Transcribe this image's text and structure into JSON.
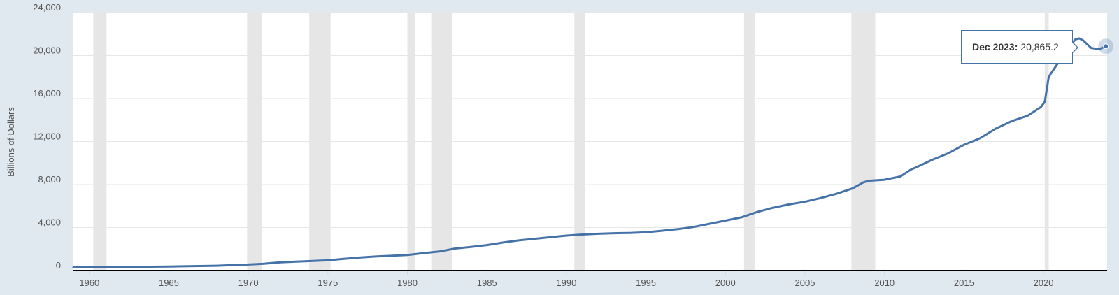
{
  "chart_data": {
    "type": "line",
    "title": "",
    "xlabel": "",
    "ylabel": "Billions of Dollars",
    "xlim": [
      1959.0,
      2024.0
    ],
    "ylim": [
      0,
      24000
    ],
    "y_ticks": [
      0,
      4000,
      8000,
      12000,
      16000,
      20000,
      24000
    ],
    "y_tick_labels": [
      "0",
      "4,000",
      "8,000",
      "12,000",
      "16,000",
      "20,000",
      "24,000"
    ],
    "x_ticks": [
      1960,
      1965,
      1970,
      1975,
      1980,
      1985,
      1990,
      1995,
      2000,
      2005,
      2010,
      2015,
      2020
    ],
    "x_tick_labels": [
      "1960",
      "1965",
      "1970",
      "1975",
      "1980",
      "1985",
      "1990",
      "1995",
      "2000",
      "2005",
      "2010",
      "2015",
      "2020"
    ],
    "grid": true,
    "colors": {
      "line": "#4572a7",
      "recession": "#e6e6e6",
      "plot_bg": "#ffffff",
      "page_bg": "#e1e9f0"
    },
    "recessions": [
      [
        1960.25,
        1961.08
      ],
      [
        1969.92,
        1970.83
      ],
      [
        1973.83,
        1975.17
      ],
      [
        1980.0,
        1980.5
      ],
      [
        1981.5,
        1982.83
      ],
      [
        1990.5,
        1991.17
      ],
      [
        2001.17,
        2001.83
      ],
      [
        2007.92,
        2009.42
      ],
      [
        2020.08,
        2020.33
      ]
    ],
    "series": [
      {
        "x": [
          1959.0,
          1960.0,
          1962.0,
          1965.0,
          1968.0,
          1970.0,
          1971.0,
          1972.0,
          1973.0,
          1975.0,
          1976.0,
          1977.0,
          1978.0,
          1980.0,
          1981.0,
          1982.0,
          1983.0,
          1984.0,
          1985.0,
          1986.0,
          1987.0,
          1988.0,
          1989.0,
          1990.0,
          1991.0,
          1992.0,
          1993.0,
          1994.0,
          1995.0,
          1996.0,
          1997.0,
          1998.0,
          1999.0,
          2000.0,
          2001.0,
          2002.0,
          2003.0,
          2004.0,
          2005.0,
          2006.0,
          2007.0,
          2008.0,
          2008.67,
          2009.0,
          2010.0,
          2011.0,
          2011.67,
          2012.0,
          2013.0,
          2014.0,
          2015.0,
          2016.0,
          2017.0,
          2018.0,
          2019.0,
          2019.83,
          2020.08,
          2020.33,
          2020.5,
          2021.0,
          2021.5,
          2022.0,
          2022.25,
          2022.5,
          2023.0,
          2023.5,
          2023.92
        ],
        "y": [
          290,
          305,
          330,
          380,
          450,
          560,
          640,
          760,
          830,
          950,
          1090,
          1210,
          1310,
          1450,
          1620,
          1770,
          2050,
          2200,
          2370,
          2600,
          2800,
          2950,
          3100,
          3250,
          3350,
          3420,
          3470,
          3500,
          3560,
          3700,
          3850,
          4050,
          4350,
          4650,
          4950,
          5450,
          5850,
          6150,
          6400,
          6750,
          7150,
          7650,
          8200,
          8350,
          8450,
          8750,
          9400,
          9600,
          10300,
          10900,
          11700,
          12300,
          13200,
          13900,
          14400,
          15200,
          15700,
          18000,
          18400,
          19500,
          20600,
          21500,
          21600,
          21400,
          20700,
          20600,
          20865.2
        ]
      }
    ],
    "tooltip": {
      "date": "Dec 2023:",
      "value": "20,865.2"
    }
  }
}
